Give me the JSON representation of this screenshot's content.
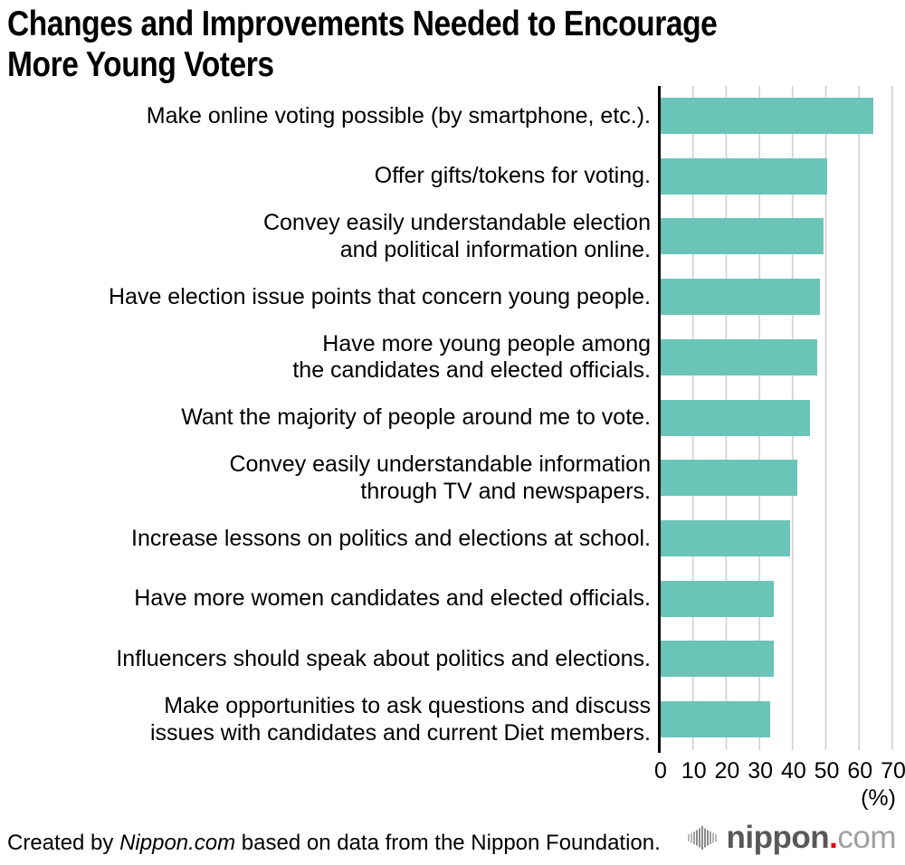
{
  "title": {
    "text": "Changes and Improvements Needed to Encourage More Young Voters",
    "lines": [
      "Changes and Improvements Needed to Encourage",
      "More Young Voters"
    ]
  },
  "chart_data": {
    "type": "bar",
    "orientation": "horizontal",
    "title": "Changes and Improvements Needed to Encourage More Young Voters",
    "categories": [
      "Make online voting possible (by smartphone, etc.).",
      "Offer gifts/tokens for voting.",
      "Convey easily understandable election and political information online.",
      "Have election issue points that concern young people.",
      "Have more young people among the candidates and elected officials.",
      "Want the majority of people around me to vote.",
      "Convey easily understandable information through TV and newspapers.",
      "Increase lessons on politics and elections at school.",
      "Have more women candidates and elected officials.",
      "Influencers should speak about politics and elections.",
      "Make opportunities to ask questions and discuss issues with candidates and current Diet members."
    ],
    "category_lines": [
      [
        "Make online voting possible (by smartphone, etc.)."
      ],
      [
        "Offer gifts/tokens for voting."
      ],
      [
        "Convey easily understandable election",
        "and political information online."
      ],
      [
        "Have election issue points that concern young people."
      ],
      [
        "Have more young people among",
        "the candidates and elected officials."
      ],
      [
        "Want the majority of people around me to vote."
      ],
      [
        "Convey easily understandable information",
        "through TV and newspapers."
      ],
      [
        "Increase lessons on politics and elections at school."
      ],
      [
        "Have more women candidates and elected officials."
      ],
      [
        "Influencers should speak about politics and elections."
      ],
      [
        "Make opportunities to ask questions and discuss",
        "issues with candidates and current Diet members."
      ]
    ],
    "values": [
      64,
      50,
      49,
      48,
      47,
      45,
      41,
      39,
      34,
      34,
      33
    ],
    "xlim": [
      0,
      70
    ],
    "xticks": [
      0,
      10,
      20,
      30,
      40,
      50,
      60,
      70
    ],
    "unit_label": "(%)",
    "bar_color": "#6ac5b8",
    "gridline_color": "#d8d8d8",
    "axis_color": "#000000",
    "grid": true,
    "legend": "none",
    "value_labels_shown": false
  },
  "footer": {
    "credit_prefix": "Created by ",
    "credit_brand": "Nippon.com",
    "credit_suffix": " based on data from the Nippon Foundation.",
    "logo": {
      "icon": "waveform-icon",
      "name": "nippon",
      "dot": ".",
      "tld": "com",
      "name_color": "#595757",
      "dot_color": "#e60012",
      "tld_color": "#9fa0a0"
    }
  }
}
